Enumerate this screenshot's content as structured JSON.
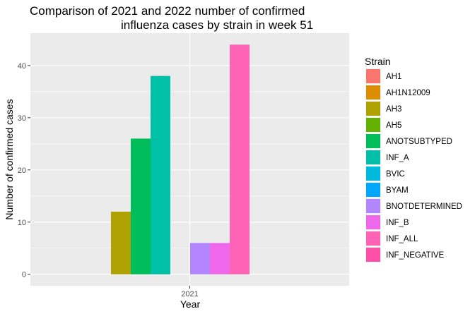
{
  "chart_data": {
    "type": "bar",
    "title_line1": "Comparison of 2021 and 2022 number of confirmed",
    "title_line2": "influenza cases by strain in week 51",
    "xlabel": "Year",
    "ylabel": "Number of confirmed cases",
    "categories": [
      "2021"
    ],
    "ylim": [
      -2.2,
      46.2
    ],
    "yticks": [
      0,
      10,
      20,
      30,
      40
    ],
    "grid": true,
    "legend": {
      "title": "Strain",
      "position": "right"
    },
    "series": [
      {
        "name": "AH1",
        "value": null,
        "color": "#F8766D"
      },
      {
        "name": "AH1N12009",
        "value": null,
        "color": "#DB8E00"
      },
      {
        "name": "AH3",
        "value": 12,
        "color": "#AEA200"
      },
      {
        "name": "AH5",
        "value": null,
        "color": "#64B200"
      },
      {
        "name": "ANOTSUBTYPED",
        "value": 26,
        "color": "#00BD5C"
      },
      {
        "name": "INF_A",
        "value": 38,
        "color": "#00C1A7"
      },
      {
        "name": "BVIC",
        "value": null,
        "color": "#00BADE"
      },
      {
        "name": "BYAM",
        "value": null,
        "color": "#00A6FF"
      },
      {
        "name": "BNOTDETERMINED",
        "value": 6,
        "color": "#B385FF"
      },
      {
        "name": "INF_B",
        "value": 6,
        "color": "#EF67EB"
      },
      {
        "name": "INF_ALL",
        "value": 44,
        "color": "#FF63B6"
      },
      {
        "name": "INF_NEGATIVE",
        "value": null,
        "color": "#FF4FA6"
      }
    ],
    "slot_order": [
      "AH3",
      "ANOTSUBTYPED",
      "INF_A",
      "BYAM",
      "BNOTDETERMINED",
      "INF_B",
      "INF_ALL"
    ]
  }
}
